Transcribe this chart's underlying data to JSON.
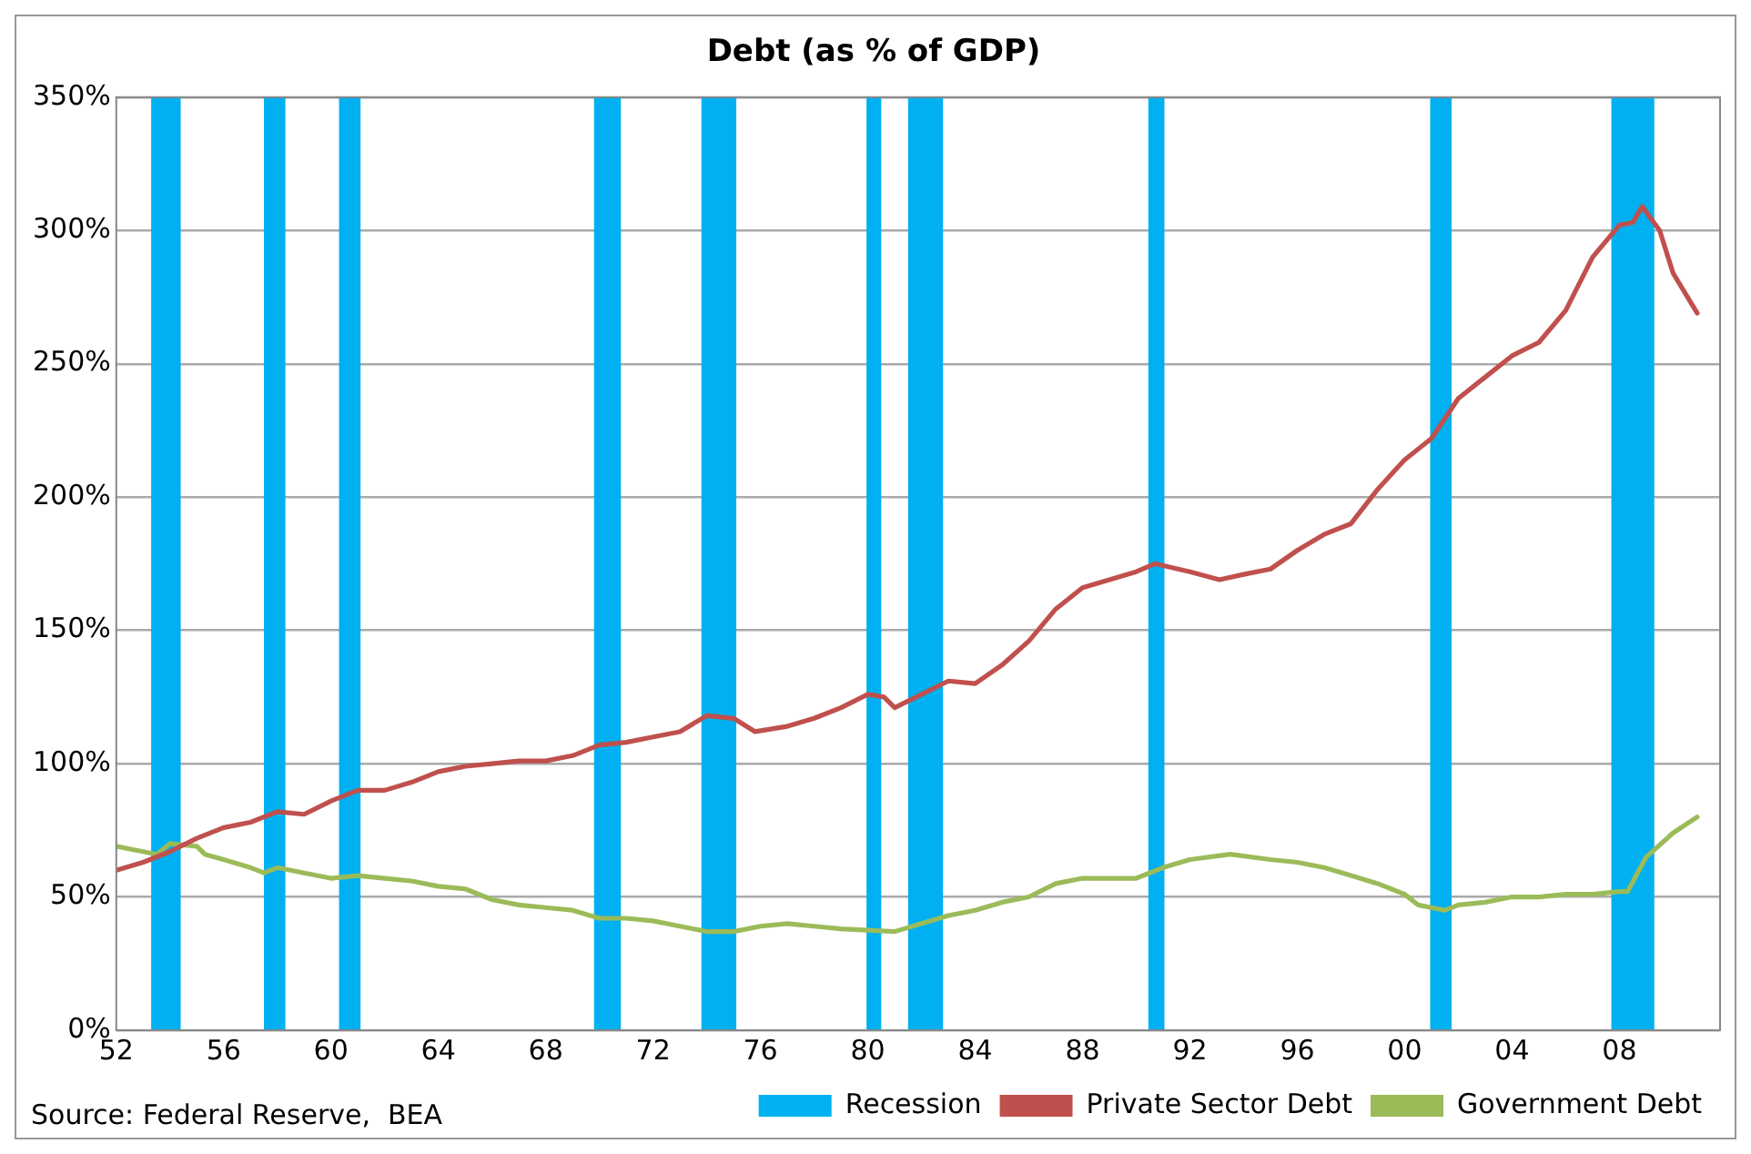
{
  "chart_data": {
    "type": "line",
    "title": "Debt (as % of GDP)",
    "xlim": [
      1952,
      2011.75
    ],
    "xticks": [
      {
        "value": 1952,
        "label": "52"
      },
      {
        "value": 1956,
        "label": "56"
      },
      {
        "value": 1960,
        "label": "60"
      },
      {
        "value": 1964,
        "label": "64"
      },
      {
        "value": 1968,
        "label": "68"
      },
      {
        "value": 1972,
        "label": "72"
      },
      {
        "value": 1976,
        "label": "76"
      },
      {
        "value": 1980,
        "label": "80"
      },
      {
        "value": 1984,
        "label": "84"
      },
      {
        "value": 1988,
        "label": "88"
      },
      {
        "value": 1992,
        "label": "92"
      },
      {
        "value": 1996,
        "label": "96"
      },
      {
        "value": 2000,
        "label": "00"
      },
      {
        "value": 2004,
        "label": "04"
      },
      {
        "value": 2008,
        "label": "08"
      }
    ],
    "ylim": [
      0,
      350
    ],
    "yticks": [
      {
        "value": 0,
        "label": "0%"
      },
      {
        "value": 50,
        "label": "50%"
      },
      {
        "value": 100,
        "label": "100%"
      },
      {
        "value": 150,
        "label": "150%"
      },
      {
        "value": 200,
        "label": "200%"
      },
      {
        "value": 250,
        "label": "250%"
      },
      {
        "value": 300,
        "label": "300%"
      },
      {
        "value": 350,
        "label": "350%"
      }
    ],
    "grid": "y",
    "legend": "bottom",
    "series": [
      {
        "name": "Private Sector Debt",
        "color": "#c0504d",
        "x": [
          1952,
          1953,
          1954,
          1955,
          1956,
          1957,
          1958,
          1959,
          1960,
          1961,
          1962,
          1963,
          1964,
          1965,
          1966,
          1967,
          1968,
          1969,
          1970,
          1971,
          1972,
          1973,
          1974,
          1975,
          1975.8,
          1977,
          1978,
          1979,
          1980,
          1980.6,
          1981,
          1982,
          1983,
          1984,
          1985,
          1986,
          1987,
          1988,
          1989,
          1990,
          1990.7,
          1992,
          1993.1,
          1994,
          1995,
          1996,
          1997,
          1998,
          1999,
          2000,
          2001,
          2002,
          2003,
          2004,
          2005,
          2006,
          2007,
          2008,
          2008.5,
          2008.85,
          2009.5,
          2010,
          2010.9
        ],
        "values": [
          60,
          63,
          67,
          72,
          76,
          78,
          82,
          81,
          86,
          90,
          90,
          93,
          97,
          99,
          100,
          101,
          101,
          103,
          107,
          108,
          110,
          112,
          118,
          117,
          112,
          114,
          117,
          121,
          126,
          125,
          121,
          126,
          131,
          130,
          137,
          146,
          158,
          166,
          169,
          172,
          175,
          172,
          169,
          171,
          173,
          180,
          186,
          190,
          203,
          214,
          222,
          237,
          245,
          253,
          258,
          270,
          290,
          302,
          303,
          309,
          300,
          284,
          269
        ]
      },
      {
        "name": "Government Debt",
        "color": "#9bbb59",
        "x": [
          1952,
          1953,
          1953.5,
          1954,
          1955,
          1955.3,
          1956,
          1957,
          1957.5,
          1958,
          1959,
          1960,
          1961,
          1962,
          1963,
          1964,
          1965,
          1966,
          1967,
          1968,
          1969,
          1970,
          1971,
          1972,
          1973,
          1974,
          1975,
          1976,
          1977,
          1978,
          1979,
          1980,
          1981,
          1982,
          1983,
          1984,
          1985,
          1986,
          1987,
          1988,
          1989,
          1990,
          1991,
          1992,
          1993.5,
          1995,
          1996,
          1997,
          1998,
          1999,
          2000,
          2000.5,
          2001.5,
          2002,
          2003,
          2004,
          2005,
          2006,
          2007,
          2008,
          2008.3,
          2009,
          2010,
          2010.9
        ],
        "values": [
          69,
          67,
          66,
          70,
          69,
          66,
          64,
          61,
          59,
          61,
          59,
          57,
          58,
          57,
          56,
          54,
          53,
          49,
          47,
          46,
          45,
          42,
          42,
          41,
          39,
          37,
          37,
          39,
          40,
          39,
          38,
          37.5,
          37,
          40,
          43,
          45,
          48,
          50,
          55,
          57,
          57,
          57,
          61,
          64,
          66,
          64,
          63,
          61,
          58,
          55,
          51,
          47,
          45,
          47,
          48,
          50,
          50,
          51,
          51,
          52,
          52,
          65,
          74,
          80
        ]
      }
    ],
    "bands": [
      {
        "axis": "x",
        "from": 1953.3,
        "to": 1954.4,
        "label": "Recession",
        "color": "#00b0f0"
      },
      {
        "axis": "x",
        "from": 1957.5,
        "to": 1958.3,
        "color": "#00b0f0"
      },
      {
        "axis": "x",
        "from": 1960.3,
        "to": 1961.1,
        "color": "#00b0f0"
      },
      {
        "axis": "x",
        "from": 1969.8,
        "to": 1970.8,
        "color": "#00b0f0"
      },
      {
        "axis": "x",
        "from": 1973.8,
        "to": 1975.1,
        "color": "#00b0f0"
      },
      {
        "axis": "x",
        "from": 1979.95,
        "to": 1980.5,
        "color": "#00b0f0"
      },
      {
        "axis": "x",
        "from": 1981.5,
        "to": 1982.8,
        "color": "#00b0f0"
      },
      {
        "axis": "x",
        "from": 1990.45,
        "to": 1991.05,
        "color": "#00b0f0"
      },
      {
        "axis": "x",
        "from": 2000.95,
        "to": 2001.75,
        "color": "#00b0f0"
      },
      {
        "axis": "x",
        "from": 2007.7,
        "to": 2009.3,
        "color": "#00b0f0"
      }
    ],
    "annotations": [
      "Source: Federal Reserve,  BEA"
    ]
  }
}
